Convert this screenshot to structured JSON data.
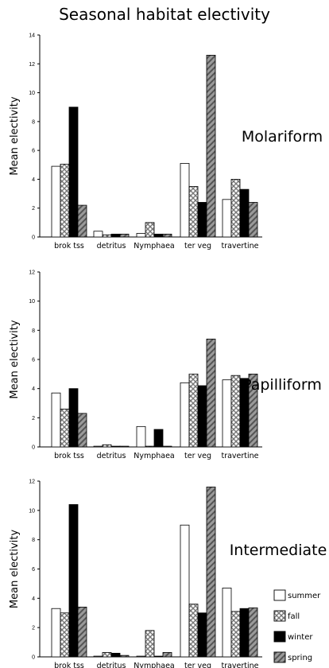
{
  "title": "Seasonal habitat electivity",
  "legend": [
    {
      "name": "summer",
      "pattern": "white"
    },
    {
      "name": "fall",
      "pattern": "crosshatch"
    },
    {
      "name": "winter",
      "pattern": "black"
    },
    {
      "name": "spring",
      "pattern": "diagonal"
    }
  ],
  "colors": {
    "fill_dark": "#000000",
    "fill_light": "#ffffff",
    "hatch_gray": "#8c8c8c"
  },
  "chart_data": [
    {
      "type": "bar",
      "label": "Molariform",
      "ylabel": "Mean electivity",
      "ylim": [
        0,
        14
      ],
      "yticks": [
        "0",
        "2",
        "4",
        "6",
        "8",
        "10",
        "12",
        "14"
      ],
      "categories": [
        "brok tss",
        "detritus",
        "Nymphaea",
        "ter veg",
        "travertine"
      ],
      "series": [
        {
          "name": "summer",
          "values": [
            4.9,
            0.4,
            0.25,
            5.1,
            2.6
          ]
        },
        {
          "name": "fall",
          "values": [
            5.05,
            0.15,
            1.0,
            3.5,
            4.0
          ]
        },
        {
          "name": "winter",
          "values": [
            9.0,
            0.2,
            0.2,
            2.4,
            3.3
          ]
        },
        {
          "name": "spring",
          "values": [
            2.2,
            0.2,
            0.2,
            12.6,
            2.4
          ]
        }
      ]
    },
    {
      "type": "bar",
      "label": "Papilliform",
      "ylabel": "Mean electivity",
      "ylim": [
        0,
        12
      ],
      "yticks": [
        "0",
        "2",
        "4",
        "6",
        "8",
        "10",
        "12"
      ],
      "categories": [
        "brok tss",
        "detritus",
        "Nymphaea",
        "ter veg",
        "travertine"
      ],
      "series": [
        {
          "name": "summer",
          "values": [
            3.7,
            0.05,
            1.4,
            4.4,
            4.6
          ]
        },
        {
          "name": "fall",
          "values": [
            2.6,
            0.15,
            0.05,
            5.0,
            4.9
          ]
        },
        {
          "name": "winter",
          "values": [
            4.0,
            0.05,
            1.2,
            4.2,
            4.7
          ]
        },
        {
          "name": "spring",
          "values": [
            2.3,
            0.05,
            0.05,
            7.4,
            5.0
          ]
        }
      ]
    },
    {
      "type": "bar",
      "label": "Intermediate",
      "ylabel": "Mean electivity",
      "ylim": [
        0,
        12
      ],
      "yticks": [
        "0",
        "2",
        "4",
        "6",
        "8",
        "10",
        "12"
      ],
      "categories": [
        "brok tss",
        "detritus",
        "Nymphaea",
        "ter veg",
        "travertine"
      ],
      "series": [
        {
          "name": "summer",
          "values": [
            3.3,
            0.05,
            0.05,
            9.0,
            4.7
          ]
        },
        {
          "name": "fall",
          "values": [
            3.0,
            0.3,
            1.8,
            3.6,
            3.1
          ]
        },
        {
          "name": "winter",
          "values": [
            10.4,
            0.25,
            0.05,
            3.0,
            3.3
          ]
        },
        {
          "name": "spring",
          "values": [
            3.4,
            0.1,
            0.3,
            11.6,
            3.35
          ]
        }
      ]
    }
  ]
}
